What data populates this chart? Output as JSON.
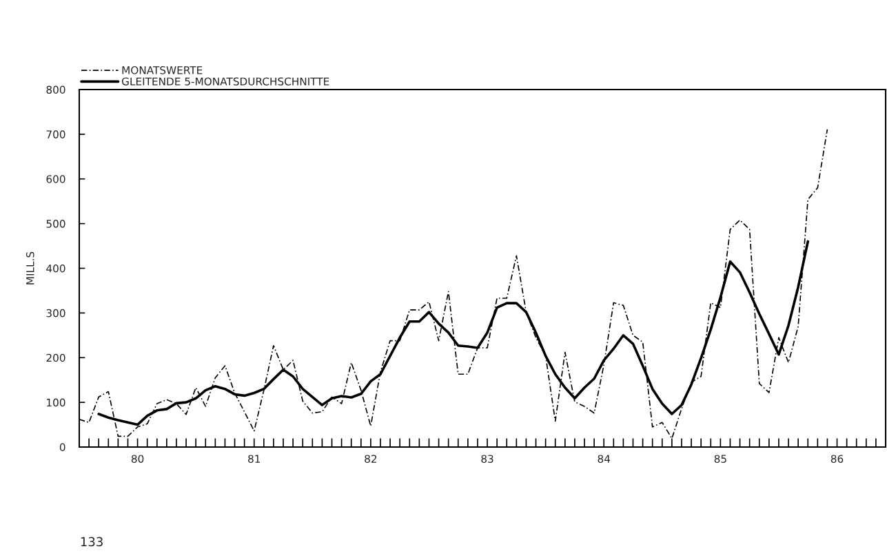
{
  "chart_data": {
    "type": "line",
    "ylabel": "MILL.S",
    "legend": "top left",
    "grid": false,
    "annotations": [
      "133"
    ],
    "xlim": [
      "1980-01",
      "1986-12"
    ],
    "ylim": [
      0,
      800
    ],
    "yticks": [
      0,
      100,
      200,
      300,
      400,
      500,
      600,
      700,
      800
    ],
    "xticks": [
      {
        "value": "1980-02",
        "label": null
      },
      {
        "value": "1980-03",
        "label": null
      },
      {
        "value": "1980-04",
        "label": null
      },
      {
        "value": "1980-05",
        "label": null
      },
      {
        "value": "1980-06",
        "label": null
      },
      {
        "value": "1980-07",
        "label": "80"
      },
      {
        "value": "1980-08",
        "label": null
      },
      {
        "value": "1980-09",
        "label": null
      },
      {
        "value": "1980-10",
        "label": null
      },
      {
        "value": "1980-11",
        "label": null
      },
      {
        "value": "1980-12",
        "label": null
      },
      {
        "value": "1981-01",
        "label": null
      },
      {
        "value": "1981-02",
        "label": null
      },
      {
        "value": "1981-03",
        "label": null
      },
      {
        "value": "1981-04",
        "label": null
      },
      {
        "value": "1981-05",
        "label": null
      },
      {
        "value": "1981-06",
        "label": null
      },
      {
        "value": "1981-07",
        "label": "81"
      },
      {
        "value": "1981-08",
        "label": null
      },
      {
        "value": "1981-09",
        "label": null
      },
      {
        "value": "1981-10",
        "label": null
      },
      {
        "value": "1981-11",
        "label": null
      },
      {
        "value": "1981-12",
        "label": null
      },
      {
        "value": "1982-01",
        "label": null
      },
      {
        "value": "1982-02",
        "label": null
      },
      {
        "value": "1982-03",
        "label": null
      },
      {
        "value": "1982-04",
        "label": null
      },
      {
        "value": "1982-05",
        "label": null
      },
      {
        "value": "1982-06",
        "label": null
      },
      {
        "value": "1982-07",
        "label": "82"
      },
      {
        "value": "1982-08",
        "label": null
      },
      {
        "value": "1982-09",
        "label": null
      },
      {
        "value": "1982-10",
        "label": null
      },
      {
        "value": "1982-11",
        "label": null
      },
      {
        "value": "1982-12",
        "label": null
      },
      {
        "value": "1983-01",
        "label": null
      },
      {
        "value": "1983-02",
        "label": null
      },
      {
        "value": "1983-03",
        "label": null
      },
      {
        "value": "1983-04",
        "label": null
      },
      {
        "value": "1983-05",
        "label": null
      },
      {
        "value": "1983-06",
        "label": null
      },
      {
        "value": "1983-07",
        "label": "83"
      },
      {
        "value": "1983-08",
        "label": null
      },
      {
        "value": "1983-09",
        "label": null
      },
      {
        "value": "1983-10",
        "label": null
      },
      {
        "value": "1983-11",
        "label": null
      },
      {
        "value": "1983-12",
        "label": null
      },
      {
        "value": "1984-01",
        "label": null
      },
      {
        "value": "1984-02",
        "label": null
      },
      {
        "value": "1984-03",
        "label": null
      },
      {
        "value": "1984-04",
        "label": null
      },
      {
        "value": "1984-05",
        "label": null
      },
      {
        "value": "1984-06",
        "label": null
      },
      {
        "value": "1984-07",
        "label": "84"
      },
      {
        "value": "1984-08",
        "label": null
      },
      {
        "value": "1984-09",
        "label": null
      },
      {
        "value": "1984-10",
        "label": null
      },
      {
        "value": "1984-11",
        "label": null
      },
      {
        "value": "1984-12",
        "label": null
      },
      {
        "value": "1985-01",
        "label": null
      },
      {
        "value": "1985-02",
        "label": null
      },
      {
        "value": "1985-03",
        "label": null
      },
      {
        "value": "1985-04",
        "label": null
      },
      {
        "value": "1985-05",
        "label": null
      },
      {
        "value": "1985-06",
        "label": null
      },
      {
        "value": "1985-07",
        "label": "85"
      },
      {
        "value": "1985-08",
        "label": null
      },
      {
        "value": "1985-09",
        "label": null
      },
      {
        "value": "1985-10",
        "label": null
      },
      {
        "value": "1985-11",
        "label": null
      },
      {
        "value": "1985-12",
        "label": null
      },
      {
        "value": "1986-01",
        "label": null
      },
      {
        "value": "1986-02",
        "label": null
      },
      {
        "value": "1986-03",
        "label": null
      },
      {
        "value": "1986-04",
        "label": null
      },
      {
        "value": "1986-05",
        "label": null
      },
      {
        "value": "1986-06",
        "label": null
      },
      {
        "value": "1986-07",
        "label": "86"
      },
      {
        "value": "1986-08",
        "label": null
      },
      {
        "value": "1986-09",
        "label": null
      },
      {
        "value": "1986-10",
        "label": null
      },
      {
        "value": "1986-11",
        "label": null
      }
    ],
    "series": [
      {
        "name": "MONATSWERTE",
        "color": "#000000",
        "line_style": "dashed",
        "x": [
          "1980-01",
          "1980-02",
          "1980-03",
          "1980-04",
          "1980-05",
          "1980-06",
          "1980-07",
          "1980-08",
          "1980-09",
          "1980-10",
          "1980-11",
          "1980-12",
          "1981-01",
          "1981-02",
          "1981-03",
          "1981-04",
          "1981-05",
          "1981-06",
          "1981-07",
          "1981-08",
          "1981-09",
          "1981-10",
          "1981-11",
          "1981-12",
          "1982-01",
          "1982-02",
          "1982-03",
          "1982-04",
          "1982-05",
          "1982-06",
          "1982-07",
          "1982-08",
          "1982-09",
          "1982-10",
          "1982-11",
          "1982-12",
          "1983-01",
          "1983-02",
          "1983-03",
          "1983-04",
          "1983-05",
          "1983-06",
          "1983-07",
          "1983-08",
          "1983-09",
          "1983-10",
          "1983-11",
          "1983-12",
          "1984-01",
          "1984-02",
          "1984-03",
          "1984-04",
          "1984-05",
          "1984-06",
          "1984-07",
          "1984-08",
          "1984-09",
          "1984-10",
          "1984-11",
          "1984-12",
          "1985-01",
          "1985-02",
          "1985-03",
          "1985-04",
          "1985-05",
          "1985-06",
          "1985-07",
          "1985-08",
          "1985-09",
          "1985-10",
          "1985-11",
          "1985-12",
          "1986-01",
          "1986-02",
          "1986-03",
          "1986-04",
          "1986-05",
          "1986-06"
        ],
        "values": [
          62,
          55,
          112,
          124,
          24,
          24,
          45,
          52,
          97,
          106,
          97,
          73,
          133,
          91,
          155,
          182,
          121,
          79,
          36,
          127,
          227,
          173,
          194,
          103,
          76,
          79,
          112,
          97,
          189,
          127,
          47,
          168,
          238,
          238,
          307,
          307,
          325,
          238,
          348,
          163,
          163,
          222,
          222,
          333,
          333,
          428,
          302,
          245,
          204,
          58,
          212,
          101,
          91,
          76,
          184,
          323,
          317,
          250,
          235,
          45,
          55,
          19,
          86,
          145,
          158,
          323,
          312,
          487,
          508,
          487,
          142,
          122,
          245,
          189,
          270,
          554,
          580,
          711
        ]
      },
      {
        "name": "GLEITENDE 5-MONATSDURCHSCHNITTE",
        "color": "#000000",
        "line_style": "solid",
        "x": [
          "1980-03",
          "1980-04",
          "1980-05",
          "1980-06",
          "1980-07",
          "1980-08",
          "1980-09",
          "1980-10",
          "1980-11",
          "1980-12",
          "1981-01",
          "1981-02",
          "1981-03",
          "1981-04",
          "1981-05",
          "1981-06",
          "1981-07",
          "1981-08",
          "1981-09",
          "1981-10",
          "1981-11",
          "1981-12",
          "1982-01",
          "1982-02",
          "1982-03",
          "1982-04",
          "1982-05",
          "1982-06",
          "1982-07",
          "1982-08",
          "1982-09",
          "1982-10",
          "1982-11",
          "1982-12",
          "1983-01",
          "1983-02",
          "1983-03",
          "1983-04",
          "1983-05",
          "1983-06",
          "1983-07",
          "1983-08",
          "1983-09",
          "1983-10",
          "1983-11",
          "1983-12",
          "1984-01",
          "1984-02",
          "1984-03",
          "1984-04",
          "1984-05",
          "1984-06",
          "1984-07",
          "1984-08",
          "1984-09",
          "1984-10",
          "1984-11",
          "1984-12",
          "1985-01",
          "1985-02",
          "1985-03",
          "1985-04",
          "1985-05",
          "1985-06",
          "1985-07",
          "1985-08",
          "1985-09",
          "1985-10",
          "1985-11",
          "1985-12",
          "1986-01",
          "1986-02",
          "1986-03",
          "1986-04"
        ],
        "values": [
          74,
          66,
          60,
          55,
          50,
          70,
          82,
          85,
          98,
          100,
          109,
          127,
          136,
          130,
          118,
          115,
          121,
          130,
          152,
          173,
          158,
          130,
          112,
          94,
          109,
          114,
          111,
          119,
          147,
          163,
          204,
          245,
          281,
          281,
          302,
          276,
          256,
          227,
          225,
          222,
          256,
          312,
          322,
          322,
          302,
          256,
          204,
          163,
          133,
          109,
          133,
          153,
          194,
          220,
          250,
          231,
          182,
          130,
          97,
          74,
          94,
          140,
          199,
          263,
          335,
          415,
          391,
          346,
          298,
          253,
          207,
          272,
          358,
          460
        ]
      }
    ]
  }
}
